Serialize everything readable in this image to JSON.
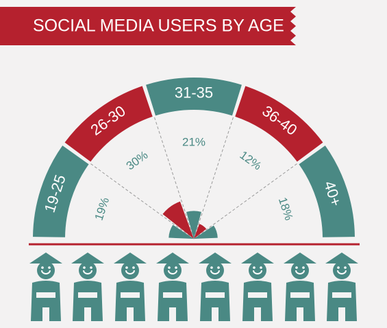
{
  "chart_data": {
    "type": "pie",
    "title": "SOCIAL MEDIA USERS BY AGE",
    "categories": [
      "19-25",
      "26-30",
      "31-35",
      "36-40",
      "40+"
    ],
    "values": [
      19,
      30,
      21,
      12,
      18
    ],
    "value_labels": [
      "19%",
      "30%",
      "21%",
      "12%",
      "18%"
    ],
    "colors": [
      "#4a8984",
      "#b5212e",
      "#4a8984",
      "#b5212e",
      "#4a8984"
    ]
  }
}
